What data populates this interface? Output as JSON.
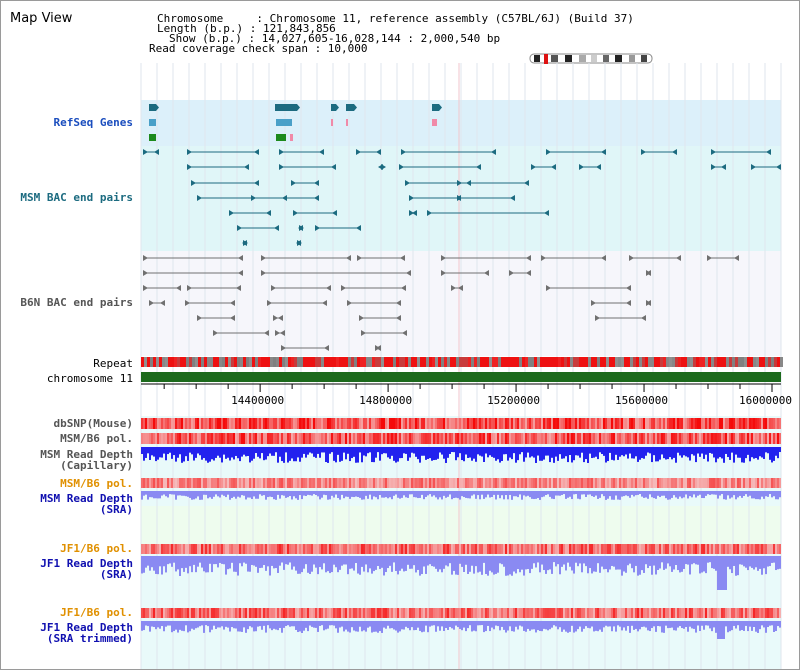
{
  "page": {
    "title": "Map View"
  },
  "info": {
    "line1": "Chromosome     : Chromosome 11, reference assembly (C57BL/6J) (Build 37)",
    "line2": "Length (b.p.) : 121,843,856",
    "line3": "Show (b.p.) : 14,027,605-16,028,144 : 2,000,540 bp",
    "line4": "Read coverage check span : 10,000"
  },
  "tracks": {
    "refseq": "RefSeq Genes",
    "msm_bac": "MSM BAC end pairs",
    "b6n_bac": "B6N BAC end pairs",
    "repeat": "Repeat",
    "chromosome": "chromosome 11",
    "dbsnp": "dbSNP(Mouse)",
    "msm_b6_pol_1": "MSM/B6 pol.",
    "msm_read_depth_cap": "MSM Read Depth\n(Capillary)",
    "msm_b6_pol_2": "MSM/B6 pol.",
    "msm_read_depth_sra": "MSM Read Depth\n(SRA)",
    "jf1_b6_pol_1": "JF1/B6 pol.",
    "jf1_read_depth_sra": "JF1 Read Depth\n(SRA)",
    "jf1_b6_pol_2": "JF1/B6 pol.",
    "jf1_read_depth_trim": "JF1 Read Depth\n(SRA trimmed)"
  },
  "axis": {
    "ticks": [
      "14400000",
      "14800000",
      "15200000",
      "15600000",
      "16000000"
    ],
    "tick_values": [
      14400000,
      14800000,
      15200000,
      15600000,
      16000000
    ],
    "start": 14027605,
    "end": 16028144
  },
  "colors": {
    "refseq_bg": "#dcf0fa",
    "msm_bg": "#e0f6f8",
    "b6n_bg": "#f6f6fb",
    "lower_bg": "#e8fafa",
    "chrom_bar": "#1c6a1c",
    "depth": "#2222ee",
    "depth_light": "#8a8af2",
    "msm_line": "#1c6b80",
    "b6n_line": "#707070"
  }
}
